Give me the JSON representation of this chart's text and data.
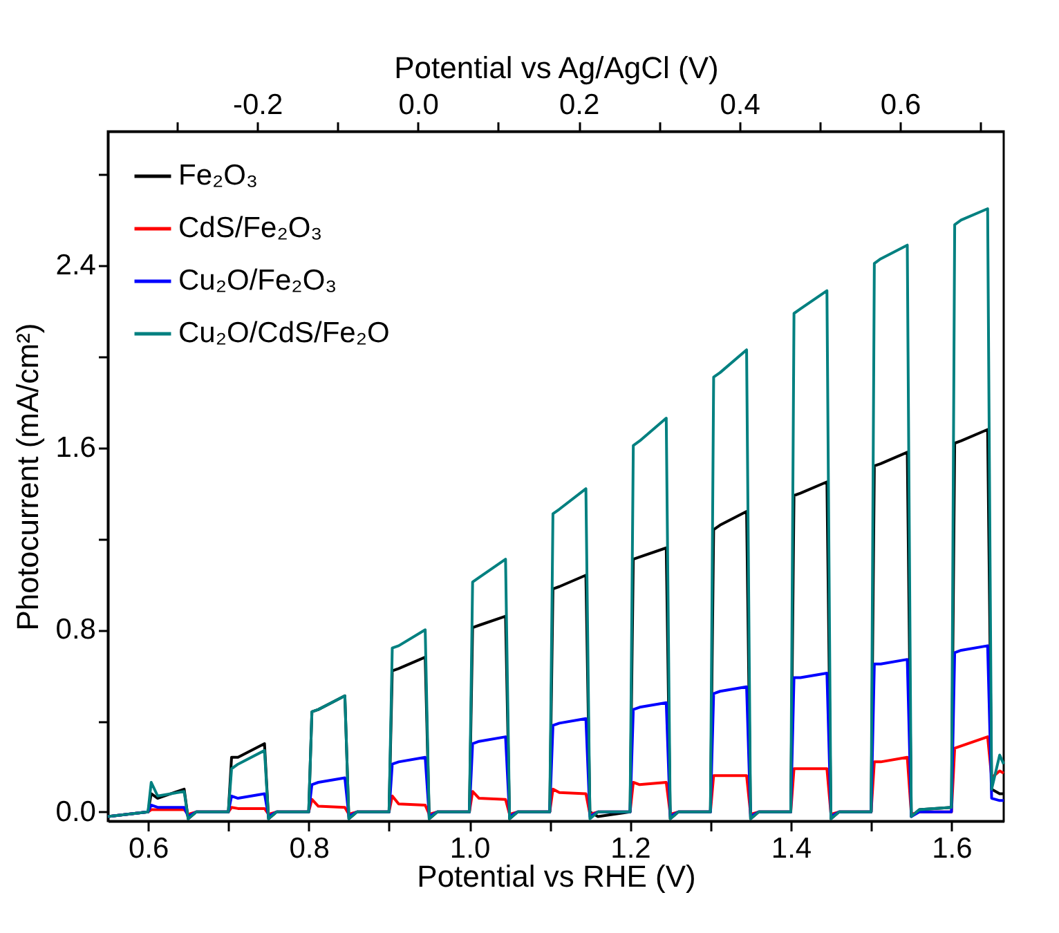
{
  "chart_data": {
    "type": "line",
    "xlabel": "Potential vs RHE (V)",
    "ylabel": "Photocurrent (mA/cm²)",
    "x2label": "Potential vs Ag/AgCl (V)",
    "xlim": [
      0.55,
      1.665
    ],
    "xticks": [
      0.6,
      {
        "value": 0.7,
        "label": null
      },
      0.8,
      {
        "value": 0.9,
        "label": null
      },
      {
        "value": 1.0,
        "label": "1.0"
      },
      {
        "value": 1.1,
        "label": null
      },
      1.2,
      {
        "value": 1.3,
        "label": null
      },
      1.4,
      {
        "value": 1.5,
        "label": null
      },
      1.6
    ],
    "x2lim": [
      -0.386,
      0.729
    ],
    "x2ticks": [
      {
        "value": -0.3,
        "label": null
      },
      -0.2,
      {
        "value": -0.1,
        "label": null
      },
      {
        "value": 0,
        "label": "0.0"
      },
      {
        "value": 0.1,
        "label": null
      },
      0.2,
      {
        "value": 0.3,
        "label": null
      },
      0.4,
      {
        "value": 0.5,
        "label": null
      },
      0.6,
      {
        "value": 0.7,
        "label": null
      }
    ],
    "ylim": [
      -0.04,
      2.99
    ],
    "yticks": [
      {
        "value": 0,
        "label": "0.0"
      },
      {
        "value": 0.4,
        "label": null
      },
      0.8,
      {
        "value": 1.2,
        "label": null
      },
      1.6,
      {
        "value": 2.0,
        "label": null
      },
      2.4,
      {
        "value": 2.8,
        "label": null
      }
    ],
    "legend": "top left",
    "grid": false,
    "x": [
      0.55,
      0.6,
      0.604,
      0.612,
      0.645,
      0.65,
      0.66,
      0.7,
      0.704,
      0.712,
      0.745,
      0.75,
      0.76,
      0.8,
      0.804,
      0.812,
      0.845,
      0.85,
      0.86,
      0.9,
      0.904,
      0.912,
      0.945,
      0.95,
      0.96,
      1.0,
      1.004,
      1.012,
      1.045,
      1.05,
      1.06,
      1.1,
      1.104,
      1.112,
      1.145,
      1.15,
      1.16,
      1.2,
      1.204,
      1.212,
      1.245,
      1.25,
      1.26,
      1.3,
      1.304,
      1.312,
      1.345,
      1.35,
      1.36,
      1.4,
      1.404,
      1.412,
      1.445,
      1.45,
      1.46,
      1.5,
      1.504,
      1.512,
      1.545,
      1.55,
      1.56,
      1.6,
      1.604,
      1.612,
      1.645,
      1.65,
      1.66,
      1.665
    ],
    "series": [
      {
        "name": "Fe₂O₃",
        "color": "#000000",
        "values": [
          -0.02,
          0,
          0.08,
          0.06,
          0.1,
          -0.03,
          0,
          0,
          0.24,
          0.24,
          0.3,
          -0.03,
          0,
          0,
          0.44,
          0.45,
          0.51,
          -0.03,
          0,
          0,
          0.62,
          0.63,
          0.68,
          -0.03,
          0,
          0,
          0.81,
          0.82,
          0.86,
          -0.03,
          0,
          0,
          0.98,
          0.99,
          1.04,
          0.0,
          -0.02,
          0,
          1.11,
          1.12,
          1.16,
          -0.03,
          0,
          0,
          1.24,
          1.26,
          1.32,
          -0.03,
          0,
          0,
          1.39,
          1.4,
          1.45,
          -0.03,
          0,
          0,
          1.52,
          1.53,
          1.58,
          -0.02,
          0.01,
          0.02,
          1.62,
          1.63,
          1.68,
          0.1,
          0.08,
          0.08
        ]
      },
      {
        "name": "CdS/Fe₂O₃",
        "color": "#ff0000",
        "values": [
          -0.02,
          0,
          0.01,
          0.01,
          0.01,
          -0.01,
          0,
          0,
          0.02,
          0.015,
          0.015,
          -0.01,
          0,
          0,
          0.055,
          0.025,
          0.02,
          -0.01,
          0,
          0,
          0.07,
          0.035,
          0.03,
          -0.01,
          0,
          0,
          0.09,
          0.06,
          0.055,
          -0.01,
          0,
          0,
          0.1,
          0.085,
          0.08,
          -0.01,
          0,
          0,
          0.13,
          0.12,
          0.13,
          -0.01,
          0,
          0,
          0.16,
          0.16,
          0.16,
          -0.01,
          0,
          0,
          0.19,
          0.19,
          0.19,
          -0.01,
          0,
          0,
          0.22,
          0.22,
          0.24,
          -0.01,
          0,
          0,
          0.28,
          0.29,
          0.33,
          0.15,
          0.18,
          0.17
        ]
      },
      {
        "name": "Cu₂O/Fe₂O₃",
        "color": "#0000ff",
        "values": [
          -0.02,
          0,
          0.03,
          0.02,
          0.02,
          -0.02,
          0,
          0,
          0.07,
          0.06,
          0.08,
          -0.02,
          0,
          0,
          0.12,
          0.13,
          0.15,
          -0.02,
          0,
          0,
          0.21,
          0.22,
          0.24,
          -0.02,
          0,
          0,
          0.3,
          0.31,
          0.33,
          -0.02,
          0,
          0,
          0.38,
          0.39,
          0.41,
          -0.02,
          0,
          0,
          0.45,
          0.46,
          0.48,
          -0.02,
          0,
          0,
          0.52,
          0.53,
          0.55,
          -0.02,
          0,
          0,
          0.59,
          0.59,
          0.61,
          -0.02,
          0,
          0,
          0.65,
          0.65,
          0.67,
          -0.02,
          0,
          0,
          0.7,
          0.71,
          0.73,
          0.06,
          0.05,
          0.05
        ]
      },
      {
        "name": "Cu₂O/CdS/Fe₂O",
        "color": "#008080",
        "values": [
          -0.02,
          0,
          0.13,
          0.07,
          0.09,
          -0.03,
          0,
          0,
          0.19,
          0.21,
          0.27,
          -0.03,
          0,
          0,
          0.44,
          0.45,
          0.51,
          -0.03,
          0,
          0,
          0.72,
          0.73,
          0.8,
          -0.03,
          0,
          0,
          1.01,
          1.03,
          1.11,
          -0.03,
          0,
          0,
          1.31,
          1.33,
          1.42,
          -0.03,
          0,
          0,
          1.61,
          1.63,
          1.73,
          -0.03,
          0,
          0,
          1.91,
          1.93,
          2.03,
          -0.03,
          0,
          0,
          2.19,
          2.21,
          2.29,
          -0.03,
          0,
          0,
          2.41,
          2.43,
          2.49,
          -0.02,
          0.01,
          0.02,
          2.58,
          2.6,
          2.65,
          0.1,
          0.25,
          0.21
        ]
      }
    ]
  }
}
